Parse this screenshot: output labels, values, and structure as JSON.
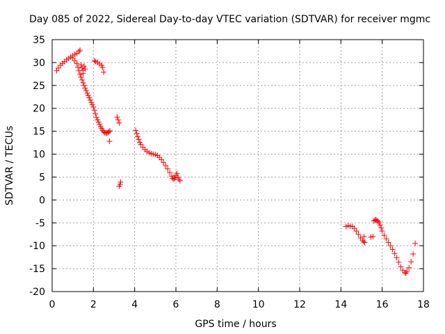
{
  "chart_data": {
    "type": "scatter",
    "title": "Day 085 of 2022, Sidereal Day-to-day VTEC variation (SDTVAR) for receiver mgmc",
    "xlabel": "GPS time / hours",
    "ylabel": "SDTVAR / TECUs",
    "xlim": [
      0,
      18
    ],
    "ylim": [
      -20,
      35
    ],
    "xticks": [
      "0",
      "2",
      "4",
      "6",
      "8",
      "10",
      "12",
      "14",
      "16",
      "18"
    ],
    "yticks": [
      "35",
      "30",
      "25",
      "20",
      "15",
      "10",
      "5",
      "0",
      "-5",
      "-10",
      "-15",
      "-20"
    ],
    "grid": true,
    "marker": "+",
    "color": "#ff0000",
    "series": [
      {
        "name": "SDTVAR",
        "points": [
          [
            0.22,
            28.2
          ],
          [
            0.3,
            28.8
          ],
          [
            0.4,
            29.4
          ],
          [
            0.5,
            29.8
          ],
          [
            0.6,
            30.2
          ],
          [
            0.7,
            30.6
          ],
          [
            0.8,
            30.9
          ],
          [
            0.9,
            31.2
          ],
          [
            1.0,
            31.5
          ],
          [
            1.1,
            31.8
          ],
          [
            1.2,
            32.0
          ],
          [
            1.3,
            32.4
          ],
          [
            1.35,
            32.7
          ],
          [
            1.0,
            31.0
          ],
          [
            1.1,
            30.4
          ],
          [
            1.2,
            29.8
          ],
          [
            1.25,
            29.0
          ],
          [
            1.3,
            28.2
          ],
          [
            1.35,
            27.4
          ],
          [
            1.4,
            26.8
          ],
          [
            1.45,
            26.2
          ],
          [
            1.5,
            25.6
          ],
          [
            1.55,
            25.0
          ],
          [
            1.6,
            24.4
          ],
          [
            1.65,
            23.9
          ],
          [
            1.7,
            23.3
          ],
          [
            1.75,
            22.8
          ],
          [
            1.8,
            22.3
          ],
          [
            1.85,
            21.8
          ],
          [
            1.9,
            21.3
          ],
          [
            1.95,
            20.8
          ],
          [
            2.0,
            20.3
          ],
          [
            2.05,
            19.6
          ],
          [
            2.1,
            18.8
          ],
          [
            2.15,
            18.0
          ],
          [
            2.2,
            17.5
          ],
          [
            2.25,
            17.0
          ],
          [
            2.3,
            16.5
          ],
          [
            2.35,
            16.0
          ],
          [
            2.4,
            15.6
          ],
          [
            2.45,
            15.2
          ],
          [
            2.5,
            14.9
          ],
          [
            2.55,
            14.7
          ],
          [
            2.6,
            14.6
          ],
          [
            2.65,
            14.6
          ],
          [
            2.7,
            14.7
          ],
          [
            2.75,
            14.9
          ],
          [
            2.8,
            15.1
          ],
          [
            2.78,
            12.8
          ],
          [
            1.4,
            29.5
          ],
          [
            1.45,
            28.8
          ],
          [
            1.5,
            28.3
          ],
          [
            1.55,
            29.2
          ],
          [
            1.6,
            28.6
          ],
          [
            1.5,
            27.6
          ],
          [
            2.05,
            30.4
          ],
          [
            2.1,
            30.2
          ],
          [
            2.2,
            30.0
          ],
          [
            2.3,
            29.7
          ],
          [
            2.4,
            29.4
          ],
          [
            2.45,
            28.9
          ],
          [
            2.5,
            27.9
          ],
          [
            3.15,
            18.1
          ],
          [
            3.2,
            17.5
          ],
          [
            3.25,
            16.8
          ],
          [
            3.25,
            3.0
          ],
          [
            3.3,
            3.4
          ],
          [
            3.32,
            3.9
          ],
          [
            4.05,
            15.2
          ],
          [
            4.1,
            14.5
          ],
          [
            4.15,
            13.8
          ],
          [
            4.2,
            13.2
          ],
          [
            4.25,
            12.6
          ],
          [
            4.3,
            12.1
          ],
          [
            4.4,
            11.5
          ],
          [
            4.5,
            11.0
          ],
          [
            4.6,
            10.6
          ],
          [
            4.7,
            10.3
          ],
          [
            4.8,
            10.1
          ],
          [
            4.9,
            10.0
          ],
          [
            5.0,
            9.9
          ],
          [
            5.1,
            9.7
          ],
          [
            5.2,
            9.3
          ],
          [
            5.3,
            8.8
          ],
          [
            5.4,
            8.2
          ],
          [
            5.5,
            7.5
          ],
          [
            5.6,
            6.8
          ],
          [
            5.7,
            6.0
          ],
          [
            5.8,
            5.2
          ],
          [
            5.85,
            4.7
          ],
          [
            5.9,
            4.5
          ],
          [
            5.95,
            4.8
          ],
          [
            6.0,
            5.4
          ],
          [
            6.05,
            5.8
          ],
          [
            6.1,
            5.0
          ],
          [
            6.15,
            4.5
          ],
          [
            6.2,
            4.2
          ],
          [
            14.25,
            -5.8
          ],
          [
            14.35,
            -5.6
          ],
          [
            14.45,
            -5.7
          ],
          [
            14.55,
            -5.8
          ],
          [
            14.65,
            -6.2
          ],
          [
            14.75,
            -6.8
          ],
          [
            14.85,
            -7.5
          ],
          [
            14.95,
            -8.3
          ],
          [
            15.05,
            -8.8
          ],
          [
            15.1,
            -9.1
          ],
          [
            15.15,
            -9.3
          ],
          [
            15.12,
            -8.0
          ],
          [
            15.45,
            -8.1
          ],
          [
            15.55,
            -8.0
          ],
          [
            15.6,
            -4.6
          ],
          [
            15.65,
            -4.4
          ],
          [
            15.7,
            -4.3
          ],
          [
            15.75,
            -4.5
          ],
          [
            15.8,
            -4.7
          ],
          [
            15.85,
            -5.0
          ],
          [
            15.9,
            -5.5
          ],
          [
            15.95,
            -6.1
          ],
          [
            16.0,
            -6.8
          ],
          [
            16.1,
            -7.7
          ],
          [
            16.2,
            -8.5
          ],
          [
            16.3,
            -9.3
          ],
          [
            16.4,
            -10.0
          ],
          [
            16.5,
            -10.8
          ],
          [
            16.6,
            -11.7
          ],
          [
            16.7,
            -12.6
          ],
          [
            16.8,
            -13.6
          ],
          [
            16.9,
            -14.6
          ],
          [
            17.0,
            -15.4
          ],
          [
            17.1,
            -15.9
          ],
          [
            17.15,
            -16.0
          ],
          [
            17.2,
            -15.6
          ],
          [
            17.3,
            -14.8
          ],
          [
            17.4,
            -13.5
          ],
          [
            17.5,
            -11.8
          ],
          [
            17.6,
            -9.5
          ]
        ]
      }
    ]
  }
}
